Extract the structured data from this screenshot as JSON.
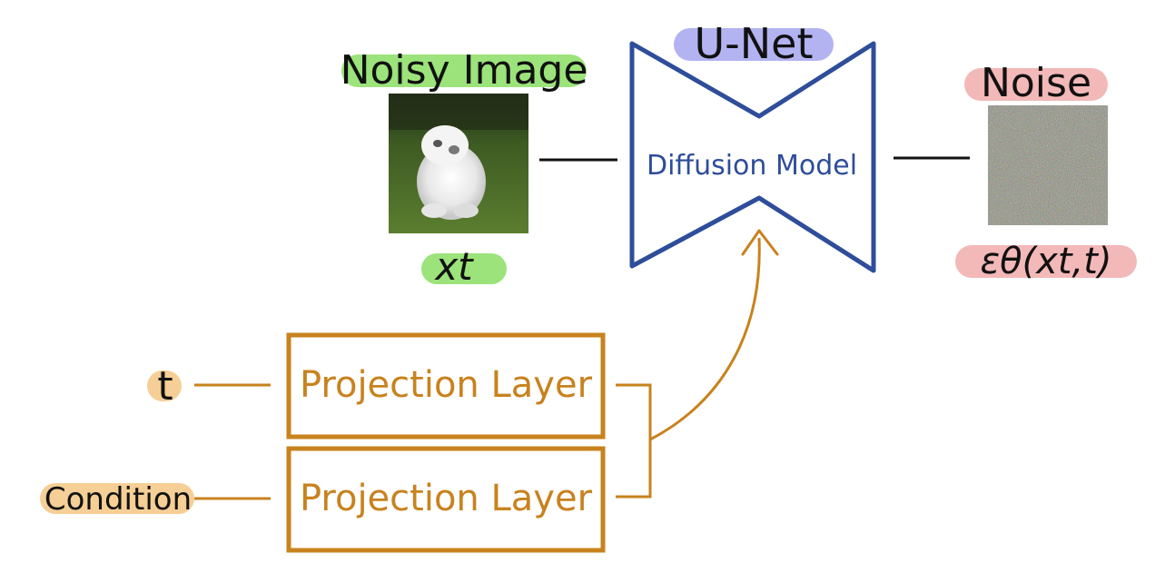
{
  "colors": {
    "unet_blue": "#2e4d9a",
    "projection_orange": "#c8821e",
    "highlight_green": "#9be37a",
    "highlight_purple": "#b3b3f2",
    "highlight_pink": "#f3b8b8",
    "highlight_orange": "#f5cf95",
    "line_black": "#111111"
  },
  "labels": {
    "noisy_image": "Noisy Image",
    "xt": "xt",
    "unet": "U-Net",
    "diffusion_model": "Diffusion Model",
    "noise": "Noise",
    "epsilon": "εθ(xt,t)",
    "t_input": "t",
    "condition_input": "Condition",
    "projection_layer_1": "Projection Layer",
    "projection_layer_2": "Projection Layer"
  },
  "icons": {
    "noisy_image": "dog-photo-icon",
    "noise_image": "noise-texture-icon"
  }
}
